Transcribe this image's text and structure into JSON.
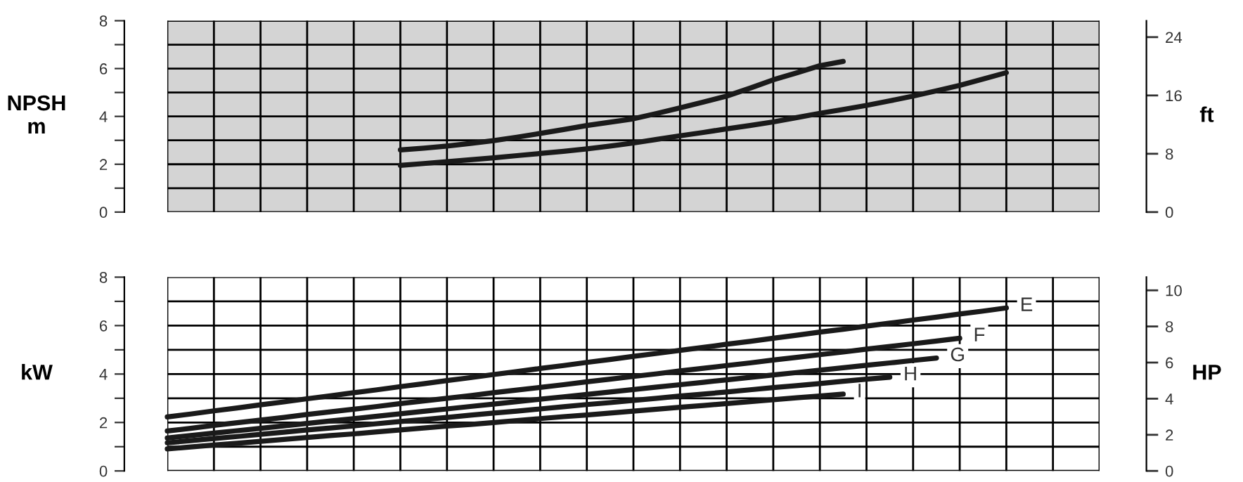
{
  "chart_data": [
    {
      "type": "line",
      "ylabel": "NPSH\nm",
      "y2label": "ft",
      "categories": [
        null,
        null,
        null,
        null,
        null,
        null,
        null,
        null,
        null,
        null,
        null,
        null,
        null,
        null,
        null,
        null,
        null,
        null,
        null,
        null,
        null,
        null,
        null,
        null,
        null,
        null,
        null,
        null,
        null,
        null,
        null,
        null,
        null,
        null,
        null,
        null,
        null,
        null,
        null,
        null,
        null
      ],
      "series": [
        {
          "color": "#1a1a1a",
          "values": [
            null,
            null,
            null,
            null,
            null,
            null,
            null,
            null,
            null,
            null,
            2.6,
            2.67,
            2.76,
            2.87,
            2.99,
            3.13,
            3.29,
            3.45,
            3.62,
            3.76,
            3.9,
            4.12,
            4.36,
            4.6,
            4.85,
            5.18,
            5.53,
            5.82,
            6.12,
            6.3,
            null,
            null,
            null,
            null,
            null,
            null,
            null,
            null,
            null,
            null,
            null
          ]
        },
        {
          "color": "#1a1a1a",
          "values": [
            null,
            null,
            null,
            null,
            null,
            null,
            null,
            null,
            null,
            null,
            1.95,
            2.03,
            2.11,
            2.19,
            2.27,
            2.36,
            2.45,
            2.54,
            2.64,
            2.76,
            2.89,
            3.04,
            3.19,
            3.33,
            3.48,
            3.62,
            3.77,
            3.95,
            4.13,
            4.29,
            4.46,
            4.65,
            4.85,
            5.07,
            5.3,
            5.56,
            5.83,
            null,
            null,
            null,
            null
          ]
        }
      ],
      "ylim": [
        0,
        8
      ],
      "yticks": [
        0,
        {
          "value": 1,
          "label": null
        },
        2,
        {
          "value": 3,
          "label": null
        },
        4,
        {
          "value": 5,
          "label": null
        },
        6,
        {
          "value": 7,
          "label": null
        },
        8
      ],
      "y2lim": [
        0,
        26.25
      ],
      "y2ticks": [
        0,
        8,
        16,
        24
      ],
      "bands": [
        {
          "axis": "y",
          "from": 0,
          "to": 8,
          "color": "#d4d4d4"
        }
      ],
      "grid": true,
      "legend": false,
      "marker": "none",
      "line_style": "solid"
    },
    {
      "type": "line",
      "ylabel": "kW",
      "y2label": "HP",
      "categories": [
        null,
        null,
        null,
        null,
        null,
        null,
        null,
        null,
        null,
        null,
        null,
        null,
        null,
        null,
        null,
        null,
        null,
        null,
        null,
        null,
        null,
        null,
        null,
        null,
        null,
        null,
        null,
        null,
        null,
        null,
        null,
        null,
        null,
        null,
        null,
        null,
        null,
        null,
        null,
        null,
        null
      ],
      "series": [
        {
          "name": "E",
          "color": "#1a1a1a",
          "values": [
            2.23,
            2.35,
            2.48,
            2.6,
            2.73,
            2.85,
            2.98,
            3.1,
            3.23,
            3.35,
            3.48,
            3.6,
            3.73,
            3.85,
            3.98,
            4.1,
            4.23,
            4.35,
            4.48,
            4.6,
            4.73,
            4.85,
            4.98,
            5.1,
            5.23,
            5.35,
            5.48,
            5.6,
            5.73,
            5.85,
            5.98,
            6.1,
            6.23,
            6.35,
            6.48,
            6.6,
            6.73,
            null,
            null,
            null,
            null
          ]
        },
        {
          "name": "F",
          "color": "#1a1a1a",
          "values": [
            1.65,
            1.76,
            1.88,
            1.99,
            2.1,
            2.21,
            2.33,
            2.44,
            2.55,
            2.66,
            2.78,
            2.89,
            3.0,
            3.11,
            3.23,
            3.34,
            3.45,
            3.56,
            3.68,
            3.79,
            3.9,
            4.01,
            4.13,
            4.24,
            4.35,
            4.46,
            4.58,
            4.69,
            4.8,
            4.91,
            5.03,
            5.14,
            5.25,
            5.36,
            5.48,
            null,
            null,
            null,
            null,
            null,
            null
          ]
        },
        {
          "name": "G",
          "color": "#1a1a1a",
          "values": [
            1.36,
            1.46,
            1.56,
            1.66,
            1.76,
            1.86,
            1.96,
            2.06,
            2.16,
            2.26,
            2.36,
            2.46,
            2.56,
            2.66,
            2.76,
            2.86,
            2.96,
            3.06,
            3.16,
            3.26,
            3.36,
            3.46,
            3.56,
            3.66,
            3.76,
            3.86,
            3.96,
            4.06,
            4.16,
            4.26,
            4.36,
            4.46,
            4.56,
            4.66,
            null,
            null,
            null,
            null,
            null,
            null,
            null
          ]
        },
        {
          "name": "H",
          "color": "#1a1a1a",
          "values": [
            1.16,
            1.25,
            1.34,
            1.42,
            1.51,
            1.6,
            1.69,
            1.77,
            1.86,
            1.95,
            2.04,
            2.12,
            2.21,
            2.3,
            2.39,
            2.47,
            2.56,
            2.65,
            2.74,
            2.82,
            2.91,
            3.0,
            3.09,
            3.17,
            3.26,
            3.35,
            3.44,
            3.52,
            3.61,
            3.7,
            3.79,
            3.87,
            null,
            null,
            null,
            null,
            null,
            null,
            null,
            null,
            null
          ]
        },
        {
          "name": "I",
          "color": "#1a1a1a",
          "values": [
            0.91,
            0.99,
            1.07,
            1.14,
            1.22,
            1.3,
            1.38,
            1.46,
            1.53,
            1.61,
            1.69,
            1.77,
            1.85,
            1.92,
            2.0,
            2.08,
            2.16,
            2.24,
            2.31,
            2.39,
            2.47,
            2.55,
            2.63,
            2.7,
            2.78,
            2.86,
            2.94,
            3.02,
            3.09,
            3.17,
            null,
            null,
            null,
            null,
            null,
            null,
            null,
            null,
            null,
            null,
            null
          ]
        }
      ],
      "ylim": [
        0,
        8
      ],
      "yticks": [
        0,
        {
          "value": 1,
          "label": null
        },
        2,
        {
          "value": 3,
          "label": null
        },
        4,
        {
          "value": 5,
          "label": null
        },
        6,
        {
          "value": 7,
          "label": null
        },
        8
      ],
      "y2lim": [
        0,
        10.73
      ],
      "y2ticks": [
        0,
        2,
        4,
        6,
        8,
        10
      ],
      "grid": true,
      "legend": false,
      "marker": "none",
      "line_style": "solid"
    }
  ]
}
